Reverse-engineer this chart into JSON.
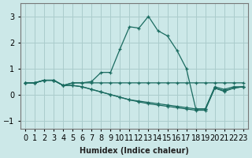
{
  "xlabel": "Humidex (Indice chaleur)",
  "background_color": "#cce8e8",
  "grid_color": "#aacccc",
  "line_color": "#1a6b60",
  "xlim": [
    -0.5,
    23.5
  ],
  "ylim": [
    -1.3,
    3.5
  ],
  "yticks": [
    -1,
    0,
    1,
    2,
    3
  ],
  "xtick_labels": [
    "0",
    "1",
    "2",
    "3",
    "4",
    "5",
    "6",
    "7",
    "8",
    "9",
    "10",
    "11",
    "12",
    "13",
    "14",
    "15",
    "16",
    "17",
    "18",
    "19",
    "20",
    "21",
    "22",
    "23"
  ],
  "series": [
    [
      0.45,
      0.45,
      0.55,
      0.55,
      0.35,
      0.45,
      0.45,
      0.5,
      0.85,
      0.85,
      1.75,
      2.6,
      2.55,
      3.0,
      2.45,
      2.25,
      1.7,
      1.0,
      -0.55,
      -0.55,
      0.3,
      0.2,
      0.3,
      0.3
    ],
    [
      0.45,
      0.45,
      0.55,
      0.55,
      0.35,
      0.45,
      0.45,
      0.45,
      0.45,
      0.45,
      0.45,
      0.45,
      0.45,
      0.45,
      0.45,
      0.45,
      0.45,
      0.45,
      0.45,
      0.45,
      0.45,
      0.45,
      0.45,
      0.45
    ],
    [
      0.45,
      0.45,
      0.55,
      0.55,
      0.35,
      0.35,
      0.3,
      0.2,
      0.1,
      0.0,
      -0.1,
      -0.2,
      -0.25,
      -0.3,
      -0.35,
      -0.4,
      -0.45,
      -0.5,
      -0.55,
      -0.55,
      0.25,
      0.15,
      0.25,
      0.3
    ],
    [
      0.45,
      0.45,
      0.55,
      0.55,
      0.35,
      0.35,
      0.3,
      0.2,
      0.1,
      0.0,
      -0.1,
      -0.2,
      -0.28,
      -0.35,
      -0.4,
      -0.45,
      -0.5,
      -0.55,
      -0.6,
      -0.6,
      0.25,
      0.12,
      0.25,
      0.3
    ]
  ]
}
